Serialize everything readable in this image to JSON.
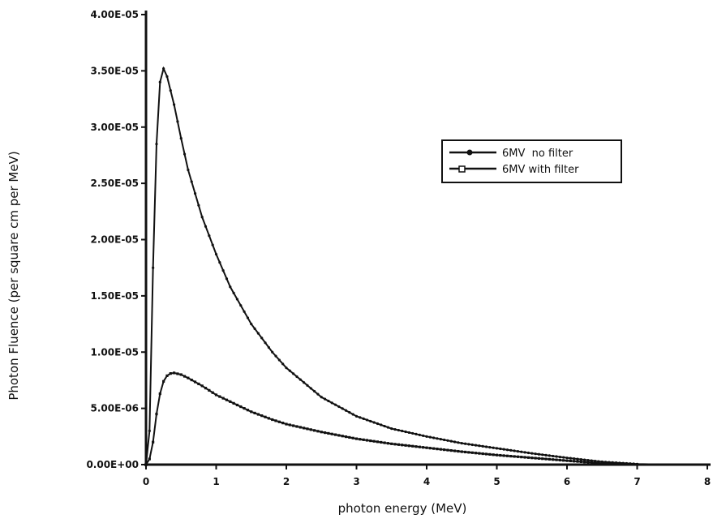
{
  "chart_data": {
    "type": "line",
    "title": "",
    "xlabel": "photon energy (MeV)",
    "ylabel": "Photon Fluence (per square cm per MeV)",
    "xlim": [
      0,
      8
    ],
    "ylim": [
      0,
      4e-05
    ],
    "x_ticks": [
      "0",
      "1",
      "2",
      "3",
      "4",
      "5",
      "6",
      "7",
      "8"
    ],
    "y_ticks": [
      "0.00E+00",
      "5.00E-06",
      "1.00E-05",
      "1.50E-05",
      "2.00E-05",
      "2.50E-05",
      "3.00E-05",
      "3.50E-05",
      "4.00E-05"
    ],
    "grid": false,
    "legend_position": "top-right",
    "series": [
      {
        "name": "6MV  no filter",
        "marker": "circle",
        "color": "#111111",
        "x": [
          0,
          0.05,
          0.1,
          0.15,
          0.2,
          0.25,
          0.3,
          0.4,
          0.5,
          0.6,
          0.8,
          1.0,
          1.2,
          1.5,
          1.8,
          2.0,
          2.5,
          3.0,
          3.5,
          4.0,
          4.5,
          5.0,
          5.5,
          6.0,
          6.5,
          7.0,
          7.5,
          8.0
        ],
        "y": [
          0,
          3e-06,
          1.75e-05,
          2.85e-05,
          3.4e-05,
          3.52e-05,
          3.45e-05,
          3.2e-05,
          2.9e-05,
          2.62e-05,
          2.2e-05,
          1.87e-05,
          1.58e-05,
          1.25e-05,
          1e-05,
          8.6e-06,
          6e-06,
          4.3e-06,
          3.2e-06,
          2.5e-06,
          1.9e-06,
          1.45e-06,
          1e-06,
          6e-07,
          2.5e-07,
          5e-08,
          0,
          0
        ]
      },
      {
        "name": "6MV with filter",
        "marker": "square",
        "color": "#111111",
        "x": [
          0,
          0.05,
          0.1,
          0.15,
          0.2,
          0.25,
          0.3,
          0.35,
          0.4,
          0.5,
          0.6,
          0.8,
          1.0,
          1.2,
          1.5,
          1.8,
          2.0,
          2.5,
          3.0,
          3.5,
          4.0,
          4.5,
          5.0,
          5.5,
          6.0,
          6.5,
          7.0,
          7.5,
          8.0
        ],
        "y": [
          0,
          5e-07,
          2e-06,
          4.5e-06,
          6.3e-06,
          7.4e-06,
          7.9e-06,
          8.1e-06,
          8.15e-06,
          8e-06,
          7.7e-06,
          7e-06,
          6.2e-06,
          5.6e-06,
          4.7e-06,
          4e-06,
          3.6e-06,
          2.9e-06,
          2.3e-06,
          1.85e-06,
          1.5e-06,
          1.15e-06,
          8.5e-07,
          6e-07,
          3.5e-07,
          1.2e-07,
          2e-08,
          0,
          0
        ]
      }
    ]
  }
}
